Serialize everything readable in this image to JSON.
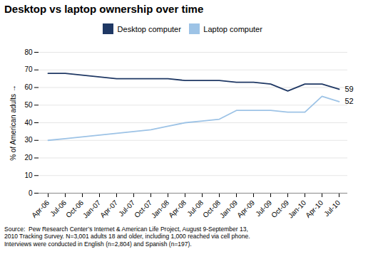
{
  "chart_data": {
    "type": "line",
    "title": "Desktop vs laptop ownership over time",
    "ylabel": "% of American adults",
    "categories": [
      "Apr-06",
      "Jul-06",
      "Oct-06",
      "Jan-07",
      "Apr-07",
      "Jul-07",
      "Oct-07",
      "Jan-08",
      "Apr-08",
      "Jul-08",
      "Oct-08",
      "Jan-09",
      "Apr-09",
      "Jul-09",
      "Oct-09",
      "Jan-10",
      "Apr-10",
      "Jul-10"
    ],
    "series": [
      {
        "name": "Desktop computer",
        "color": "#1F3864",
        "values": [
          68,
          68,
          67,
          66,
          65,
          65,
          65,
          65,
          64,
          64,
          64,
          63,
          63,
          62,
          58,
          62,
          62,
          59
        ]
      },
      {
        "name": "Laptop computer",
        "color": "#9DC3E6",
        "values": [
          30,
          31,
          32,
          33,
          34,
          35,
          36,
          38,
          40,
          41,
          42,
          47,
          47,
          47,
          46,
          46,
          55,
          52
        ]
      }
    ],
    "annotations": [
      "59",
      "52"
    ],
    "source": "Source:  Pew Research Center’s Internet & American Life Project, August 9-September 13,\n2010 Tracking Survey. N=3,001 adults 18 and older, including 1,000 reached via cell phone.\nInterviews were conducted in English (n=2,804) and Spanish (n=197).",
    "ylim": [
      0,
      80
    ],
    "yticks": [
      0,
      10,
      20,
      30,
      40,
      50,
      60,
      70,
      80
    ],
    "grid": true,
    "legend": "top"
  }
}
